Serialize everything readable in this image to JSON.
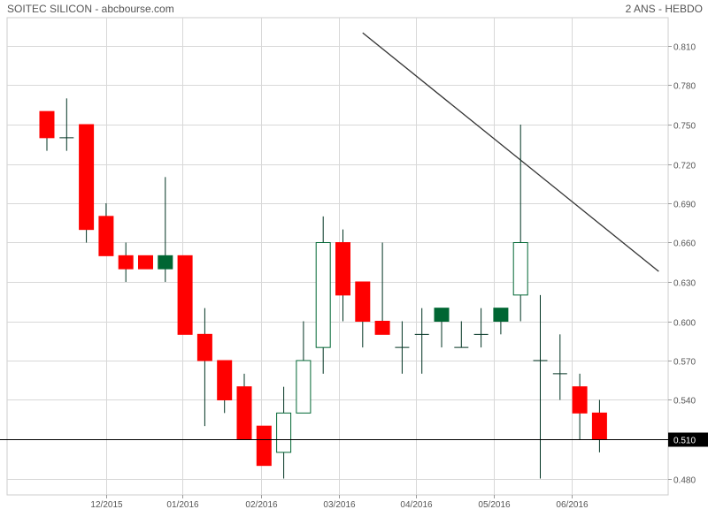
{
  "header": {
    "title": "SOITEC SILICON - abcbourse.com",
    "period": "2 ANS - HEBDO"
  },
  "colors": {
    "bear": "#ff0000",
    "bull": "#006633",
    "wick": "#003322",
    "grid": "#d8d8d8",
    "text": "#555555",
    "priceBox": "#000000"
  },
  "chart_data": {
    "type": "candlestick",
    "title": "SOITEC SILICON - abcbourse.com",
    "subtitle": "2 ANS - HEBDO",
    "ylim": [
      0.47,
      0.82
    ],
    "y_ticks": [
      "0.480",
      "0.510",
      "0.540",
      "0.570",
      "0.600",
      "0.630",
      "0.660",
      "0.690",
      "0.720",
      "0.750",
      "0.780",
      "0.810"
    ],
    "x_ticks": [
      "12/2015",
      "01/2016",
      "02/2016",
      "03/2016",
      "04/2016",
      "05/2016",
      "06/2016"
    ],
    "current_price": 0.51,
    "current_price_label": "0.510",
    "grid": true,
    "candles": [
      {
        "open": 0.76,
        "high": 0.76,
        "low": 0.73,
        "close": 0.74
      },
      {
        "open": 0.74,
        "high": 0.77,
        "low": 0.73,
        "close": 0.74
      },
      {
        "open": 0.75,
        "high": 0.75,
        "low": 0.66,
        "close": 0.67
      },
      {
        "open": 0.68,
        "high": 0.69,
        "low": 0.65,
        "close": 0.65
      },
      {
        "open": 0.65,
        "high": 0.66,
        "low": 0.63,
        "close": 0.64
      },
      {
        "open": 0.65,
        "high": 0.65,
        "low": 0.64,
        "close": 0.64
      },
      {
        "open": 0.64,
        "high": 0.71,
        "low": 0.63,
        "close": 0.65
      },
      {
        "open": 0.65,
        "high": 0.65,
        "low": 0.59,
        "close": 0.59
      },
      {
        "open": 0.59,
        "high": 0.61,
        "low": 0.52,
        "close": 0.57
      },
      {
        "open": 0.57,
        "high": 0.57,
        "low": 0.53,
        "close": 0.54
      },
      {
        "open": 0.55,
        "high": 0.56,
        "low": 0.51,
        "close": 0.51
      },
      {
        "open": 0.52,
        "high": 0.52,
        "low": 0.49,
        "close": 0.49
      },
      {
        "open": 0.5,
        "high": 0.55,
        "low": 0.48,
        "close": 0.53
      },
      {
        "open": 0.53,
        "high": 0.6,
        "low": 0.53,
        "close": 0.57
      },
      {
        "open": 0.58,
        "high": 0.68,
        "low": 0.56,
        "close": 0.66
      },
      {
        "open": 0.66,
        "high": 0.67,
        "low": 0.6,
        "close": 0.62
      },
      {
        "open": 0.63,
        "high": 0.63,
        "low": 0.58,
        "close": 0.6
      },
      {
        "open": 0.6,
        "high": 0.66,
        "low": 0.59,
        "close": 0.59
      },
      {
        "open": 0.58,
        "high": 0.6,
        "low": 0.56,
        "close": 0.58
      },
      {
        "open": 0.59,
        "high": 0.61,
        "low": 0.56,
        "close": 0.59
      },
      {
        "open": 0.6,
        "high": 0.61,
        "low": 0.58,
        "close": 0.61
      },
      {
        "open": 0.58,
        "high": 0.6,
        "low": 0.58,
        "close": 0.58
      },
      {
        "open": 0.59,
        "high": 0.61,
        "low": 0.58,
        "close": 0.59
      },
      {
        "open": 0.6,
        "high": 0.61,
        "low": 0.59,
        "close": 0.61
      },
      {
        "open": 0.62,
        "high": 0.75,
        "low": 0.6,
        "close": 0.66
      },
      {
        "open": 0.57,
        "high": 0.62,
        "low": 0.48,
        "close": 0.57
      },
      {
        "open": 0.56,
        "high": 0.59,
        "low": 0.54,
        "close": 0.56
      },
      {
        "open": 0.55,
        "high": 0.56,
        "low": 0.51,
        "close": 0.53
      },
      {
        "open": 0.53,
        "high": 0.54,
        "low": 0.5,
        "close": 0.51
      }
    ],
    "trendline": {
      "from": {
        "candle": 16,
        "price": 0.82
      },
      "to": {
        "candle": 31,
        "price": 0.638
      }
    }
  }
}
